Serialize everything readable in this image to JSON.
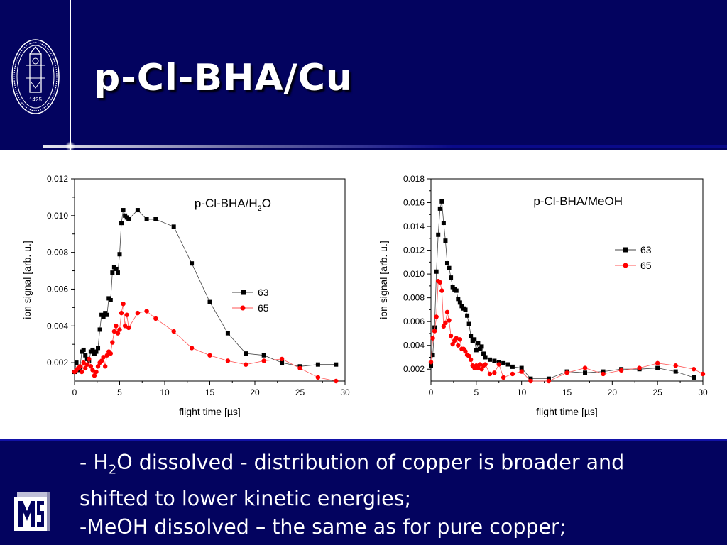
{
  "slide": {
    "title": "p-Cl-BHA/Cu",
    "seal_year": "1425",
    "summary": {
      "line1_prefix": "- H",
      "line1_sub": "2",
      "line1_suffix": "O dissolved - distribution of copper is broader and",
      "line2": "shifted to lower kinetic energies;",
      "line3": "-MeOH dissolved – the same as for pure copper;"
    }
  },
  "colors": {
    "background_header": "#03035f",
    "series_63": "#000000",
    "series_65": "#ff0000"
  },
  "chart_data": [
    {
      "type": "line",
      "title_main": "p-Cl-BHA/H",
      "title_sub": "2",
      "title_tail": "O",
      "xlabel": "flight time [µs]",
      "ylabel": "ion signal [arb. u.]",
      "xlim": [
        0,
        30
      ],
      "ylim": [
        0.001,
        0.012
      ],
      "xticks": [
        0,
        5,
        10,
        15,
        20,
        25,
        30
      ],
      "yticks": [
        0.002,
        0.004,
        0.006,
        0.008,
        0.01,
        0.012
      ],
      "ytick_labels": [
        "0.002",
        "0.004",
        "0.006",
        "0.008",
        "0.010",
        "0.012"
      ],
      "legend_position": "center-right",
      "series": [
        {
          "name": "63",
          "marker": "square",
          "x": [
            0.0,
            0.2,
            0.4,
            0.6,
            0.8,
            1.0,
            1.2,
            1.4,
            1.6,
            1.8,
            2.0,
            2.2,
            2.4,
            2.6,
            2.8,
            3.0,
            3.2,
            3.4,
            3.6,
            3.8,
            4.0,
            4.2,
            4.4,
            4.6,
            4.8,
            5.0,
            5.2,
            5.4,
            5.6,
            5.8,
            6.0,
            7.0,
            8.0,
            9.0,
            11.0,
            13.0,
            15.0,
            17.0,
            19.0,
            21.0,
            23.0,
            25.0,
            27.0,
            29.0
          ],
          "y": [
            0.0015,
            0.002,
            0.0016,
            0.0017,
            0.0026,
            0.0027,
            0.0024,
            0.0022,
            0.0021,
            0.0026,
            0.0027,
            0.0025,
            0.0026,
            0.0028,
            0.0038,
            0.0046,
            0.0045,
            0.0047,
            0.0046,
            0.0055,
            0.0054,
            0.0069,
            0.0072,
            0.0071,
            0.0069,
            0.0079,
            0.0096,
            0.0103,
            0.01,
            0.0099,
            0.0098,
            0.0103,
            0.0098,
            0.0098,
            0.0094,
            0.0074,
            0.0053,
            0.0036,
            0.0025,
            0.0024,
            0.002,
            0.0018,
            0.0019,
            0.0019
          ]
        },
        {
          "name": "65",
          "marker": "circle",
          "x": [
            0.0,
            0.2,
            0.4,
            0.6,
            0.8,
            1.0,
            1.2,
            1.4,
            1.6,
            1.8,
            2.0,
            2.2,
            2.4,
            2.6,
            2.8,
            3.0,
            3.2,
            3.4,
            3.6,
            3.8,
            4.0,
            4.2,
            4.4,
            4.6,
            4.8,
            5.0,
            5.2,
            5.4,
            5.6,
            5.8,
            6.0,
            7.0,
            8.0,
            9.0,
            11.0,
            13.0,
            15.0,
            17.0,
            19.0,
            21.0,
            23.0,
            25.0,
            27.0,
            29.0
          ],
          "y": [
            0.0015,
            0.0016,
            0.0017,
            0.0018,
            0.0015,
            0.002,
            0.0017,
            0.0019,
            0.0022,
            0.0018,
            0.0016,
            0.0013,
            0.0015,
            0.0018,
            0.002,
            0.0021,
            0.0023,
            0.0018,
            0.0024,
            0.0026,
            0.0025,
            0.0031,
            0.0037,
            0.004,
            0.0036,
            0.0038,
            0.0047,
            0.0052,
            0.004,
            0.0046,
            0.0039,
            0.0047,
            0.0048,
            0.0044,
            0.0037,
            0.0028,
            0.0024,
            0.0021,
            0.0019,
            0.0021,
            0.0022,
            0.0017,
            0.0012,
            0.001
          ]
        }
      ]
    },
    {
      "type": "line",
      "title_main": "p-Cl-BHA/MeOH",
      "title_sub": "",
      "title_tail": "",
      "xlabel": "flight time [µs]",
      "ylabel": "ion signal [arb. u.]",
      "xlim": [
        0,
        30
      ],
      "ylim": [
        0.001,
        0.018
      ],
      "xticks": [
        0,
        5,
        10,
        15,
        20,
        25,
        30
      ],
      "yticks": [
        0.002,
        0.004,
        0.006,
        0.008,
        0.01,
        0.012,
        0.014,
        0.016,
        0.018
      ],
      "ytick_labels": [
        "0.002",
        "0.004",
        "0.006",
        "0.008",
        "0.010",
        "0.012",
        "0.014",
        "0.016",
        "0.018"
      ],
      "legend_position": "top-right",
      "series": [
        {
          "name": "63",
          "marker": "square",
          "x": [
            0.0,
            0.2,
            0.4,
            0.6,
            0.8,
            1.0,
            1.2,
            1.4,
            1.6,
            1.8,
            2.0,
            2.2,
            2.4,
            2.6,
            2.8,
            3.0,
            3.2,
            3.4,
            3.6,
            3.8,
            4.0,
            4.2,
            4.4,
            4.6,
            4.8,
            5.0,
            5.2,
            5.4,
            5.6,
            5.8,
            6.0,
            6.5,
            7.0,
            7.5,
            8.0,
            8.5,
            9.0,
            10.0,
            11.0,
            13.0,
            15.0,
            17.0,
            19.0,
            21.0,
            23.0,
            25.0,
            27.0,
            29.0
          ],
          "y": [
            0.0023,
            0.0032,
            0.0055,
            0.0102,
            0.0133,
            0.0155,
            0.0161,
            0.0143,
            0.0128,
            0.0109,
            0.0105,
            0.0097,
            0.0089,
            0.0087,
            0.0086,
            0.0079,
            0.0076,
            0.0073,
            0.0071,
            0.007,
            0.0065,
            0.0058,
            0.0048,
            0.0044,
            0.0045,
            0.0036,
            0.0042,
            0.0037,
            0.0039,
            0.0033,
            0.003,
            0.0028,
            0.0027,
            0.0026,
            0.0025,
            0.0024,
            0.0022,
            0.0021,
            0.0012,
            0.0012,
            0.0018,
            0.0017,
            0.0018,
            0.002,
            0.002,
            0.0021,
            0.0018,
            0.0013
          ]
        },
        {
          "name": "65",
          "marker": "circle",
          "x": [
            0.0,
            0.2,
            0.4,
            0.6,
            0.8,
            1.0,
            1.2,
            1.4,
            1.6,
            1.8,
            2.0,
            2.2,
            2.4,
            2.6,
            2.8,
            3.0,
            3.2,
            3.4,
            3.6,
            3.8,
            4.0,
            4.2,
            4.4,
            4.6,
            4.8,
            5.0,
            5.2,
            5.4,
            5.6,
            5.8,
            6.0,
            6.5,
            7.0,
            7.5,
            8.0,
            9.0,
            10.0,
            11.0,
            13.0,
            15.0,
            17.0,
            19.0,
            21.0,
            23.0,
            25.0,
            27.0,
            29.0,
            30.0
          ],
          "y": [
            0.0026,
            0.0046,
            0.0052,
            0.0064,
            0.0094,
            0.0093,
            0.0086,
            0.0056,
            0.0059,
            0.0068,
            0.0061,
            0.0048,
            0.0041,
            0.0044,
            0.0046,
            0.004,
            0.0045,
            0.0037,
            0.0037,
            0.0035,
            0.0032,
            0.0031,
            0.0028,
            0.0023,
            0.0021,
            0.0023,
            0.0021,
            0.0024,
            0.002,
            0.0023,
            0.0024,
            0.0016,
            0.0017,
            0.0024,
            0.0013,
            0.0016,
            0.0018,
            0.001,
            0.001,
            0.0017,
            0.0021,
            0.0016,
            0.0019,
            0.0021,
            0.0025,
            0.0023,
            0.002,
            0.0016
          ]
        }
      ]
    }
  ]
}
